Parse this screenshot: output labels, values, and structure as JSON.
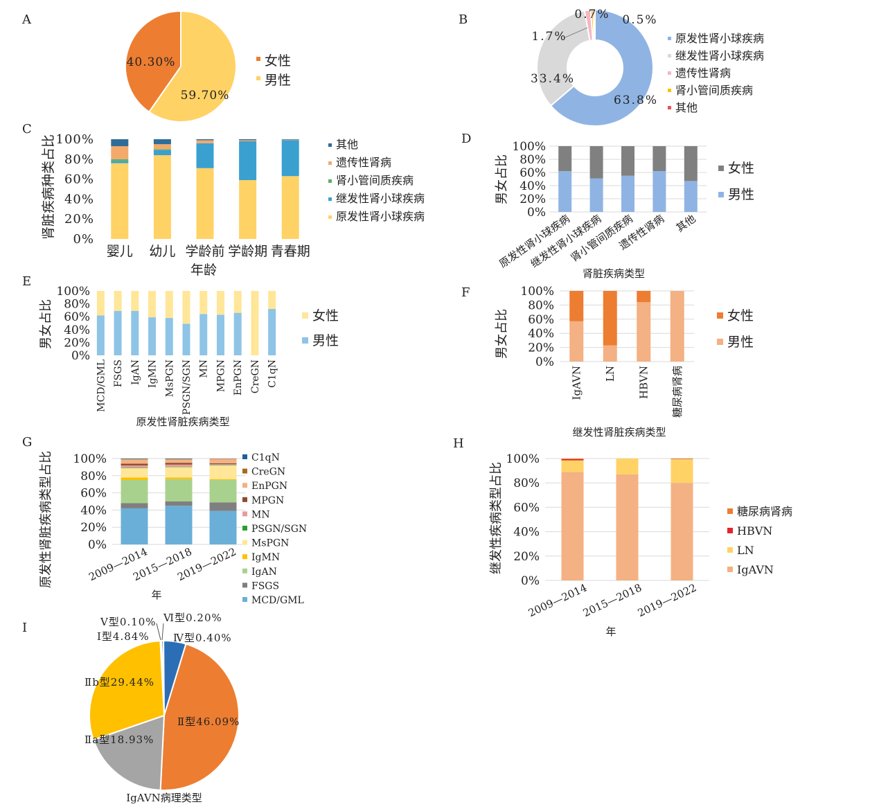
{
  "chart_data": [
    {
      "panel": "A",
      "type": "pie",
      "labels": [
        "女性",
        "男性"
      ],
      "values": [
        40.3,
        59.7
      ],
      "value_labels": [
        "40.30%",
        "59.70%"
      ],
      "colors": [
        "#ED7D31",
        "#FFD265"
      ],
      "legend": [
        "女性",
        "男性"
      ],
      "legend_position": "right"
    },
    {
      "panel": "B",
      "type": "pie",
      "donut": true,
      "labels": [
        "原发性肾小球疾病",
        "继发性肾小球疾病",
        "遗传性肾病",
        "肾小管间质疾病",
        "其他"
      ],
      "values": [
        63.8,
        33.4,
        1.7,
        0.7,
        0.5
      ],
      "value_labels": [
        "63.8%",
        "33.4%",
        "1.7%",
        "0.7%",
        "0.5%"
      ],
      "colors": [
        "#8FB4E3",
        "#D9D9D9",
        "#F4B7C3",
        "#FFC000",
        "#E8525A"
      ],
      "legend": [
        "原发性肾小球疾病",
        "继发性肾小球疾病",
        "遗传性肾病",
        "肾小管间质疾病",
        "其他"
      ],
      "legend_position": "right"
    },
    {
      "panel": "C",
      "type": "bar",
      "stacked": true,
      "categories": [
        "婴儿",
        "幼儿",
        "学龄前",
        "学龄期",
        "青春期"
      ],
      "series": [
        {
          "name": "原发性肾小球疾病",
          "values": [
            76,
            84,
            71,
            59,
            63
          ],
          "color": "#FFD265"
        },
        {
          "name": "继发性肾小球疾病",
          "values": [
            2,
            5,
            25,
            39,
            36
          ],
          "color": "#3AA0D0"
        },
        {
          "name": "肾小管间质疾病",
          "values": [
            2,
            1,
            0,
            0,
            0
          ],
          "color": "#5AAF6A"
        },
        {
          "name": "遗传性肾病",
          "values": [
            13,
            5,
            3,
            1,
            0.5
          ],
          "color": "#F4A96B"
        },
        {
          "name": "其他",
          "values": [
            7,
            5,
            1,
            1,
            0.5
          ],
          "color": "#2E6D98"
        }
      ],
      "yticks": [
        "0%",
        "20%",
        "40%",
        "60%",
        "80%",
        "100%"
      ],
      "xlabel": "年龄",
      "ylabel": "肾脏疾病种类占比",
      "ylim": [
        0,
        100
      ],
      "legend": [
        "其他",
        "遗传性肾病",
        "肾小管间质疾病",
        "继发性肾小球疾病",
        "原发性肾小球疾病"
      ],
      "legend_position": "right"
    },
    {
      "panel": "D",
      "type": "bar",
      "stacked": true,
      "categories": [
        "原发性肾小球疾病",
        "继发性肾小球疾病",
        "肾小管间质疾病",
        "遗传性肾病",
        "其他"
      ],
      "series": [
        {
          "name": "男性",
          "values": [
            62,
            51,
            55,
            62,
            47
          ],
          "color": "#8FB4E3"
        },
        {
          "name": "女性",
          "values": [
            38,
            49,
            45,
            38,
            53
          ],
          "color": "#808080"
        }
      ],
      "yticks": [
        "0%",
        "20%",
        "40%",
        "60%",
        "80%",
        "100%"
      ],
      "xlabel": "肾脏疾病类型",
      "ylabel": "男女占比",
      "ylim": [
        0,
        100
      ],
      "legend": [
        "女性",
        "男性"
      ],
      "legend_position": "right"
    },
    {
      "panel": "E",
      "type": "bar",
      "stacked": true,
      "categories": [
        "MCD/GML",
        "FSGS",
        "IgAN",
        "IgMN",
        "MsPGN",
        "PSGN/SGN",
        "MN",
        "MPGN",
        "EnPGN",
        "CreGN",
        "C1qN"
      ],
      "series": [
        {
          "name": "男性",
          "values": [
            62,
            69,
            69,
            59,
            58,
            49,
            64,
            63,
            66,
            0,
            72
          ],
          "color": "#8EC4E6"
        },
        {
          "name": "女性",
          "values": [
            38,
            31,
            31,
            41,
            42,
            51,
            36,
            37,
            34,
            100,
            28
          ],
          "color": "#FFE699"
        }
      ],
      "yticks": [
        "0%",
        "20%",
        "40%",
        "60%",
        "80%",
        "100%"
      ],
      "xlabel": "原发性肾脏疾病类型",
      "ylabel": "男女占比",
      "ylim": [
        0,
        100
      ],
      "legend": [
        "女性",
        "男性"
      ],
      "legend_position": "right"
    },
    {
      "panel": "F",
      "type": "bar",
      "stacked": true,
      "categories": [
        "IgAVN",
        "LN",
        "HBVN",
        "糖尿病肾病"
      ],
      "series": [
        {
          "name": "男性",
          "values": [
            57,
            23,
            84,
            100
          ],
          "color": "#F4B183"
        },
        {
          "name": "女性",
          "values": [
            43,
            77,
            16,
            0
          ],
          "color": "#ED7D31"
        }
      ],
      "yticks": [
        "0%",
        "20%",
        "40%",
        "60%",
        "80%",
        "100%"
      ],
      "xlabel": "继发性肾脏疾病类型",
      "ylabel": "男女占比",
      "ylim": [
        0,
        100
      ],
      "legend": [
        "女性",
        "男性"
      ],
      "legend_position": "right"
    },
    {
      "panel": "G",
      "type": "bar",
      "stacked": true,
      "categories": [
        "2009—2014",
        "2015—2018",
        "2019—2022"
      ],
      "series": [
        {
          "name": "MCD/GML",
          "values": [
            42,
            45,
            39
          ],
          "color": "#6AAFD8"
        },
        {
          "name": "FSGS",
          "values": [
            6,
            5,
            10
          ],
          "color": "#7F7F7F"
        },
        {
          "name": "IgAN",
          "values": [
            27,
            26,
            26
          ],
          "color": "#A9D18E"
        },
        {
          "name": "IgMN",
          "values": [
            3,
            2,
            1
          ],
          "color": "#FFC000"
        },
        {
          "name": "MsPGN",
          "values": [
            11,
            12,
            16
          ],
          "color": "#FFE699"
        },
        {
          "name": "PSGN/SGN",
          "values": [
            0.5,
            0.5,
            0.5
          ],
          "color": "#2CA02C"
        },
        {
          "name": "MN",
          "values": [
            2.5,
            2.5,
            1
          ],
          "color": "#E89B9B"
        },
        {
          "name": "MPGN",
          "values": [
            2,
            2,
            1
          ],
          "color": "#8C4A2E"
        },
        {
          "name": "EnPGN",
          "values": [
            5,
            4,
            5
          ],
          "color": "#F4B183"
        },
        {
          "name": "CreGN",
          "values": [
            0.5,
            0.5,
            0.3
          ],
          "color": "#A66A1A"
        },
        {
          "name": "C1qN",
          "values": [
            0.5,
            0.5,
            0.2
          ],
          "color": "#1F5F99"
        }
      ],
      "yticks": [
        "0%",
        "20%",
        "40%",
        "60%",
        "80%",
        "100%"
      ],
      "xlabel": "年",
      "ylabel": "原发性肾脏疾病类型占比",
      "ylim": [
        0,
        100
      ],
      "legend": [
        "C1qN",
        "CreGN",
        "EnPGN",
        "MPGN",
        "MN",
        "PSGN/SGN",
        "MsPGN",
        "IgMN",
        "IgAN",
        "FSGS",
        "MCD/GML"
      ],
      "legend_position": "right"
    },
    {
      "panel": "H",
      "type": "bar",
      "stacked": true,
      "categories": [
        "2009—2014",
        "2015—2018",
        "2019—2022"
      ],
      "series": [
        {
          "name": "IgAVN",
          "values": [
            89,
            87,
            80
          ],
          "color": "#F4B183"
        },
        {
          "name": "LN",
          "values": [
            9.5,
            13,
            19.5
          ],
          "color": "#FFD265"
        },
        {
          "name": "HBVN",
          "values": [
            1,
            0,
            0.3
          ],
          "color": "#E0262C"
        },
        {
          "name": "糖尿病肾病",
          "values": [
            0.5,
            0,
            0.2
          ],
          "color": "#ED7D31"
        }
      ],
      "yticks": [
        "0%",
        "20%",
        "40%",
        "60%",
        "80%",
        "100%"
      ],
      "xlabel": "年",
      "ylabel": "继发性疾病类型占比",
      "ylim": [
        0,
        100
      ],
      "legend": [
        "糖尿病肾病",
        "HBVN",
        "LN",
        "IgAVN"
      ],
      "legend_position": "right"
    },
    {
      "panel": "I",
      "type": "pie",
      "labels": [
        "Ⅰ型",
        "Ⅱ型",
        "Ⅱa型",
        "Ⅱb型",
        "Ⅴ型",
        "Ⅵ型",
        "Ⅳ型"
      ],
      "values": [
        4.84,
        46.09,
        18.93,
        29.44,
        0.1,
        0.2,
        0.4
      ],
      "value_labels": [
        "Ⅰ型4.84%",
        "Ⅱ型46.09%",
        "Ⅱa型18.93%",
        "Ⅱb型29.44%",
        "Ⅴ型0.10%",
        "Ⅵ型0.20%",
        "Ⅳ型0.40%"
      ],
      "colors": [
        "#2C6EB5",
        "#ED7D31",
        "#A5A5A5",
        "#FFC000",
        "#5B9BD5",
        "#4FA3D9",
        "#1F4E79"
      ],
      "xlabel": "IgAVN病理类型"
    }
  ]
}
